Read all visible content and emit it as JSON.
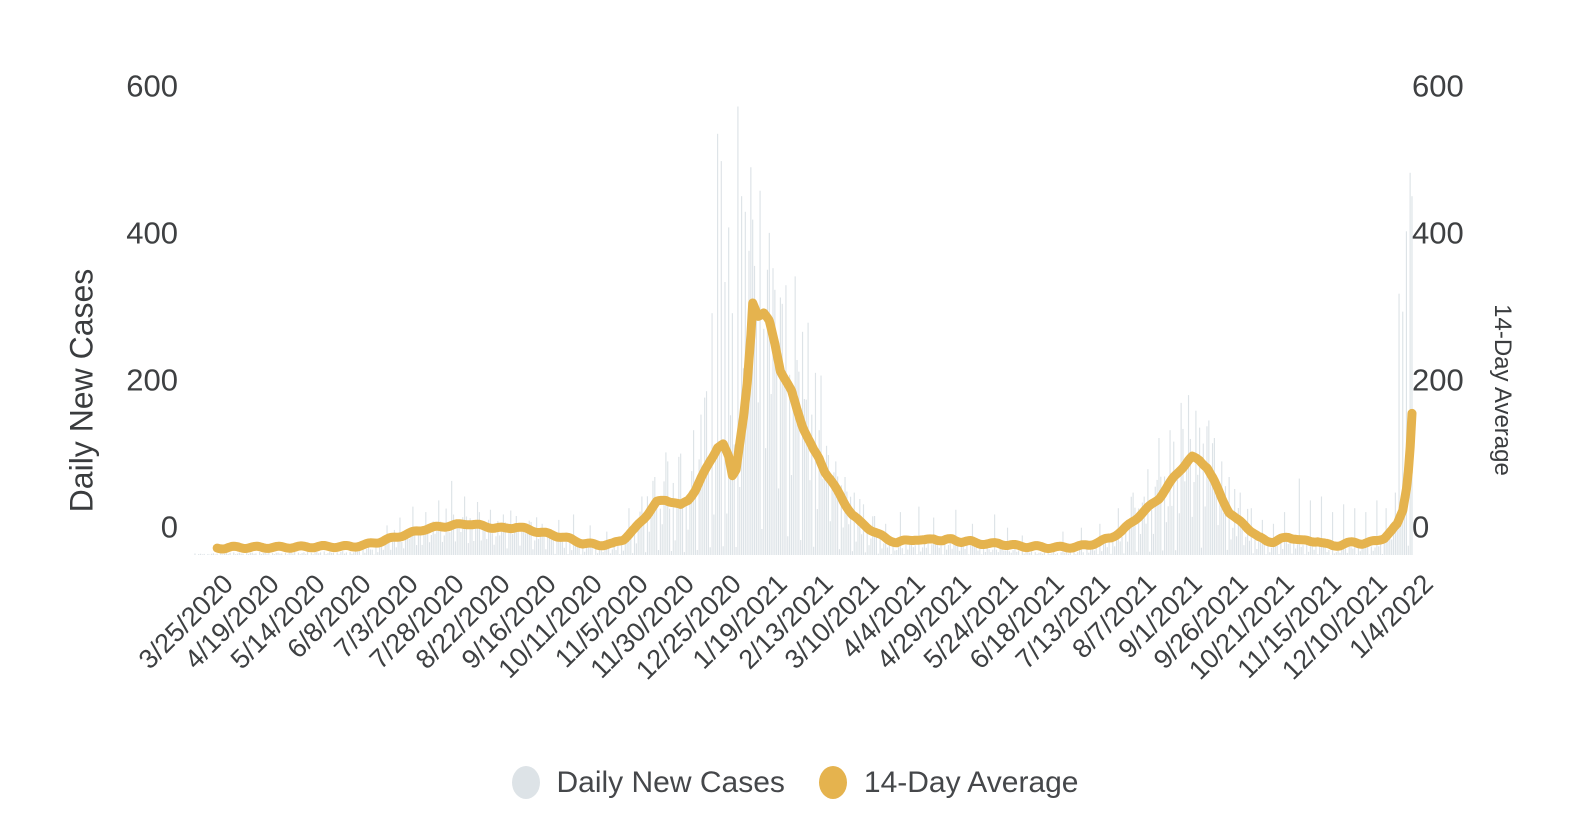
{
  "chart_data": {
    "type": "bar+line",
    "title": "",
    "ylabel_left": "Daily New Cases",
    "ylabel_right": "14-Day Average",
    "grid": false,
    "legend_position": "bottom",
    "ylim": [
      0,
      600
    ],
    "y_ticks": [
      600,
      400,
      200,
      0
    ],
    "y_tick_labels": [
      "600",
      "400",
      "200",
      "0"
    ],
    "x_start_date": "3/25/2020",
    "x_end_date": "1/13/2022",
    "x_tick_interval_days": 25,
    "n_days": 660,
    "x_tick_labels": [
      "3/25/2020",
      "4/19/2020",
      "5/14/2020",
      "6/8/2020",
      "7/3/2020",
      "7/28/2020",
      "8/22/2020",
      "9/16/2020",
      "10/11/2020",
      "11/5/2020",
      "11/30/2020",
      "12/25/2020",
      "1/19/2021",
      "2/13/2021",
      "3/10/2021",
      "4/4/2021",
      "4/29/2021",
      "5/24/2021",
      "6/18/2021",
      "7/13/2021",
      "8/7/2021",
      "9/1/2021",
      "9/26/2021",
      "10/21/2021",
      "11/15/2021",
      "12/10/2021",
      "1/4/2022"
    ],
    "series": [
      {
        "name": "Daily New Cases",
        "type": "bar",
        "color": "#dde3e7",
        "estimated": true,
        "note": "~660 daily bars; reconstructed as weekly_pattern x 14-day-average with explicit spike overrides (day index from 3/25/2020)",
        "weekly_pattern": [
          1.5,
          0.5,
          1.2,
          1.75,
          0.85,
          1.3,
          0.1
        ],
        "max_value": 575,
        "max_value_day": 294,
        "spike_overrides": {
          "14": 8,
          "104": 38,
          "111": 48,
          "118": 62,
          "125": 55,
          "132": 70,
          "139": 95,
          "146": 75,
          "153": 68,
          "160": 58,
          "167": 52,
          "174": 50,
          "181": 44,
          "188": 40,
          "197": 45,
          "205": 52,
          "214": 38,
          "223": 30,
          "235": 60,
          "242": 75,
          "249": 100,
          "256": 120,
          "263": 130,
          "270": 160,
          "274": 180,
          "277": 210,
          "280": 310,
          "283": 540,
          "285": 505,
          "287": 350,
          "289": 420,
          "291": 310,
          "294": 575,
          "296": 460,
          "298": 440,
          "300": 390,
          "302": 430,
          "304": 310,
          "306": 467,
          "308": 290,
          "311": 413,
          "314": 340,
          "318": 322,
          "322": 231,
          "326": 250,
          "330": 200,
          "334": 180,
          "338": 160,
          "342": 140,
          "347": 120,
          "352": 100,
          "357": 80,
          "362": 65,
          "368": 50,
          "374": 40,
          "382": 55,
          "392": 62,
          "400": 48,
          "412": 58,
          "421": 40,
          "433": 52,
          "440": 35,
          "448": 25,
          "470": 30,
          "480": 35,
          "490": 40,
          "500": 60,
          "508": 80,
          "516": 110,
          "522": 150,
          "528": 160,
          "534": 195,
          "538": 205,
          "542": 185,
          "548": 165,
          "552": 150,
          "556": 120,
          "560": 100,
          "566": 80,
          "572": 60,
          "578": 45,
          "584": 40,
          "590": 55,
          "598": 98,
          "604": 70,
          "610": 75,
          "616": 55,
          "622": 65,
          "628": 60,
          "634": 55,
          "640": 70,
          "645": 60,
          "650": 80,
          "652": 335,
          "654": 312,
          "656": 415,
          "658": 490,
          "659": 460
        }
      },
      {
        "name": "14-Day Average",
        "type": "line",
        "color": "#e5b34e",
        "stroke_width": 9,
        "points_day_value": [
          [
            12,
            1
          ],
          [
            20,
            2
          ],
          [
            45,
            2
          ],
          [
            70,
            3
          ],
          [
            85,
            3
          ],
          [
            92,
            5
          ],
          [
            100,
            9
          ],
          [
            108,
            14
          ],
          [
            116,
            19
          ],
          [
            124,
            24
          ],
          [
            132,
            27
          ],
          [
            140,
            29
          ],
          [
            148,
            31
          ],
          [
            156,
            28
          ],
          [
            162,
            26
          ],
          [
            168,
            25
          ],
          [
            174,
            27
          ],
          [
            180,
            24
          ],
          [
            186,
            21
          ],
          [
            194,
            17
          ],
          [
            202,
            13
          ],
          [
            210,
            7
          ],
          [
            218,
            5
          ],
          [
            226,
            6
          ],
          [
            232,
            12
          ],
          [
            238,
            24
          ],
          [
            244,
            40
          ],
          [
            250,
            57
          ],
          [
            255,
            60
          ],
          [
            259,
            57
          ],
          [
            263,
            53
          ],
          [
            267,
            60
          ],
          [
            271,
            72
          ],
          [
            275,
            90
          ],
          [
            279,
            108
          ],
          [
            283,
            124
          ],
          [
            286,
            127
          ],
          [
            289,
            112
          ],
          [
            291,
            90
          ],
          [
            293,
            98
          ],
          [
            295,
            130
          ],
          [
            297,
            160
          ],
          [
            299,
            200
          ],
          [
            301,
            260
          ],
          [
            302,
            300
          ],
          [
            305,
            285
          ],
          [
            308,
            288
          ],
          [
            311,
            277
          ],
          [
            314,
            250
          ],
          [
            317,
            218
          ],
          [
            320,
            205
          ],
          [
            323,
            192
          ],
          [
            326,
            170
          ],
          [
            329,
            150
          ],
          [
            332,
            135
          ],
          [
            335,
            120
          ],
          [
            338,
            110
          ],
          [
            341,
            95
          ],
          [
            344,
            85
          ],
          [
            348,
            70
          ],
          [
            352,
            55
          ],
          [
            356,
            42
          ],
          [
            360,
            33
          ],
          [
            365,
            25
          ],
          [
            370,
            18
          ],
          [
            375,
            12
          ],
          [
            380,
            8
          ],
          [
            385,
            10
          ],
          [
            390,
            12
          ],
          [
            395,
            10
          ],
          [
            400,
            13
          ],
          [
            405,
            10
          ],
          [
            410,
            12
          ],
          [
            415,
            9
          ],
          [
            420,
            9
          ],
          [
            425,
            7
          ],
          [
            430,
            6
          ],
          [
            435,
            7
          ],
          [
            440,
            5
          ],
          [
            445,
            4
          ],
          [
            450,
            3
          ],
          [
            455,
            3
          ],
          [
            460,
            2
          ],
          [
            466,
            2
          ],
          [
            472,
            2
          ],
          [
            478,
            3
          ],
          [
            484,
            5
          ],
          [
            490,
            9
          ],
          [
            496,
            14
          ],
          [
            502,
            22
          ],
          [
            508,
            34
          ],
          [
            514,
            46
          ],
          [
            518,
            54
          ],
          [
            522,
            62
          ],
          [
            526,
            74
          ],
          [
            530,
            87
          ],
          [
            534,
            98
          ],
          [
            538,
            108
          ],
          [
            540,
            112
          ],
          [
            544,
            108
          ],
          [
            548,
            100
          ],
          [
            552,
            82
          ],
          [
            556,
            62
          ],
          [
            560,
            45
          ],
          [
            564,
            36
          ],
          [
            568,
            30
          ],
          [
            572,
            22
          ],
          [
            576,
            14
          ],
          [
            580,
            10
          ],
          [
            584,
            9
          ],
          [
            588,
            12
          ],
          [
            592,
            14
          ],
          [
            596,
            13
          ],
          [
            600,
            10
          ],
          [
            604,
            9
          ],
          [
            608,
            10
          ],
          [
            612,
            6
          ],
          [
            616,
            4
          ],
          [
            620,
            5
          ],
          [
            624,
            7
          ],
          [
            628,
            8
          ],
          [
            632,
            7
          ],
          [
            636,
            8
          ],
          [
            640,
            10
          ],
          [
            644,
            14
          ],
          [
            648,
            22
          ],
          [
            651,
            30
          ],
          [
            654,
            48
          ],
          [
            656,
            75
          ],
          [
            657,
            95
          ],
          [
            658,
            125
          ],
          [
            659,
            165
          ]
        ]
      }
    ]
  },
  "legend": {
    "items": [
      {
        "label": "Daily New Cases",
        "swatch_color": "#dde3e7"
      },
      {
        "label": "14-Day Average",
        "swatch_color": "#e5b34e"
      }
    ]
  }
}
